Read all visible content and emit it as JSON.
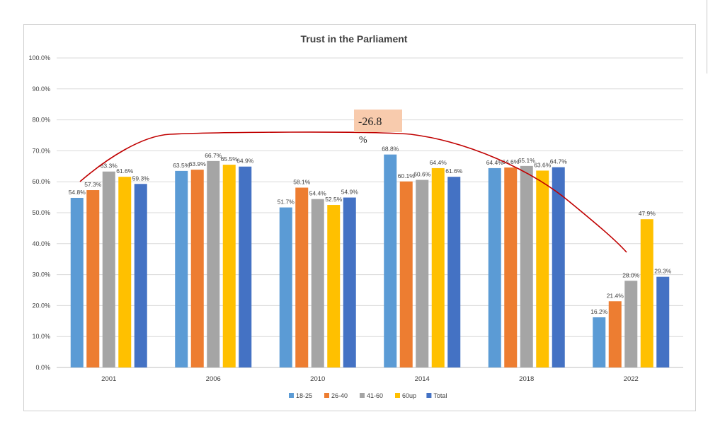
{
  "chart_data": {
    "type": "bar",
    "title": "Trust in the Parliament",
    "categories": [
      "2001",
      "2006",
      "2010",
      "2014",
      "2018",
      "2022"
    ],
    "series": [
      {
        "name": "18-25",
        "color": "#5b9bd5",
        "values": [
          54.8,
          63.5,
          51.7,
          68.8,
          64.4,
          16.2
        ]
      },
      {
        "name": "26-40",
        "color": "#ed7d31",
        "values": [
          57.3,
          63.9,
          58.1,
          60.1,
          64.6,
          21.4
        ]
      },
      {
        "name": "41-60",
        "color": "#a5a5a5",
        "values": [
          63.3,
          66.7,
          54.4,
          60.6,
          65.1,
          28.0
        ]
      },
      {
        "name": "60up",
        "color": "#ffc000",
        "values": [
          61.6,
          65.5,
          52.5,
          64.4,
          63.6,
          47.9
        ]
      },
      {
        "name": "Total",
        "color": "#4472c4",
        "values": [
          59.3,
          64.9,
          54.9,
          61.6,
          64.7,
          29.3
        ]
      }
    ],
    "ylim": [
      0,
      100
    ],
    "yticks": [
      "0.0%",
      "10.0%",
      "20.0%",
      "30.0%",
      "40.0%",
      "50.0%",
      "60.0%",
      "70.0%",
      "80.0%",
      "90.0%",
      "100.0%"
    ],
    "xlabel": "",
    "ylabel": "",
    "grid": true,
    "legend": "bottom",
    "annotation": {
      "text": "-26.8",
      "suffix": "%",
      "curve_color": "#c00000",
      "box_color": "#f8cbad"
    }
  }
}
